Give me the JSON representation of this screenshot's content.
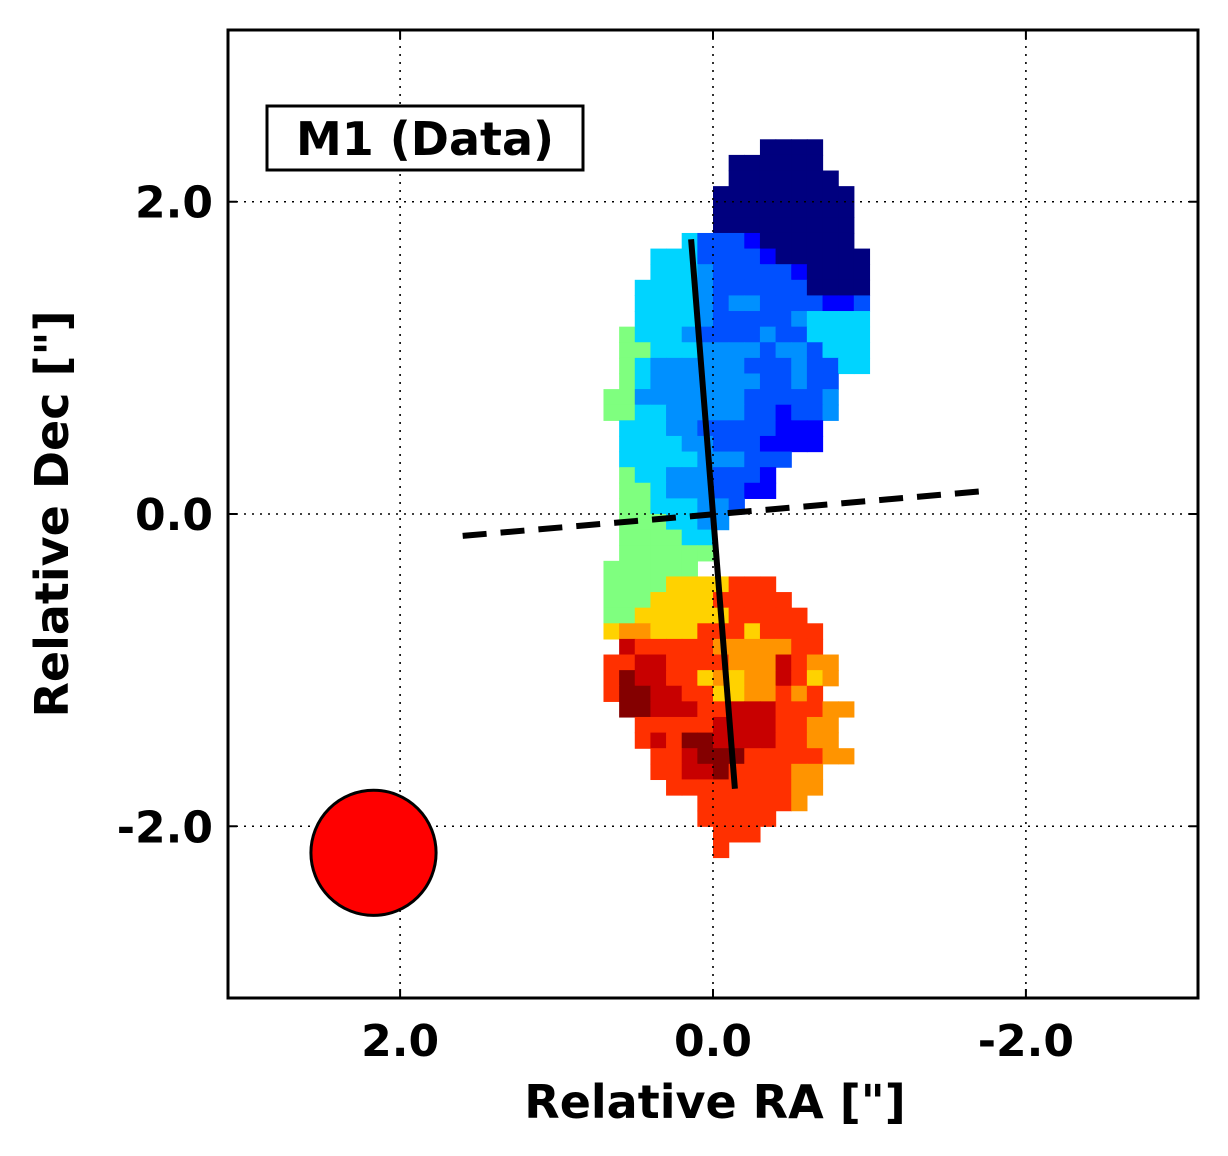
{
  "chart_data": {
    "type": "heatmap",
    "annotation": "M1 (Data)",
    "xlabel": "Relative RA [\"]",
    "ylabel": "Relative Dec [\"]",
    "xlim": [
      3.1,
      -3.1
    ],
    "ylim": [
      -3.1,
      3.1
    ],
    "grid": true,
    "xticks": [
      2.0,
      0.0,
      -2.0
    ],
    "yticks": [
      2.0,
      0.0,
      -2.0
    ],
    "xtick_labels": [
      "2.0",
      "0.0",
      "-2.0"
    ],
    "ytick_labels": [
      "2.0",
      "0.0",
      "-2.0"
    ],
    "pixel_size_arcsec": 0.1,
    "kinematic_major_axis": {
      "x": [
        0.14,
        -0.14
      ],
      "y": [
        1.76,
        -1.76
      ],
      "style": "solid"
    },
    "kinematic_minor_axis": {
      "x": [
        1.6,
        -1.77
      ],
      "y": [
        -0.14,
        0.15
      ],
      "style": "dashed"
    },
    "beam": {
      "x": 2.17,
      "y": -2.17,
      "diameter_arcsec": 0.8,
      "color": "#ff0000"
    },
    "colormap": "jet",
    "pixel_map": {
      "palette": {
        "0": "#00007f",
        "1": "#0000ff",
        "2": "#0050ff",
        "3": "#0090ff",
        "4": "#00d4ff",
        "5": "#7fff7f",
        "6": "#ffd200",
        "7": "#ff9400",
        "8": "#ff3000",
        "9": "#c80000",
        "a": "#840000"
      },
      "dec_top": 2.35,
      "rows": [
        {
          "ra_start": -0.35,
          "cells": "0000"
        },
        {
          "ra_start": -0.15,
          "cells": "000000"
        },
        {
          "ra_start": -0.15,
          "cells": "0000000"
        },
        {
          "ra_start": -0.05,
          "cells": "000000000"
        },
        {
          "ra_start": -0.05,
          "cells": "000000000"
        },
        {
          "ra_start": -0.05,
          "cells": "000000000"
        },
        {
          "ra_start": 0.15,
          "cells": "42221000000"
        },
        {
          "ra_start": 0.35,
          "cells": "44422221000000"
        },
        {
          "ra_start": 0.35,
          "cells": "44432222210000"
        },
        {
          "ra_start": 0.45,
          "cells": "444432222220000"
        },
        {
          "ra_start": 0.45,
          "cells": "444432332222112"
        },
        {
          "ra_start": 0.45,
          "cells": "444432222234444"
        },
        {
          "ra_start": 0.55,
          "cells": "5444322223224444"
        },
        {
          "ra_start": 0.55,
          "cells": "5544433332332444"
        },
        {
          "ra_start": 0.55,
          "cells": "5433333322232244"
        },
        {
          "ra_start": 0.55,
          "cells": "54333333322322"
        },
        {
          "ra_start": 0.65,
          "cells": "553333333222223"
        },
        {
          "ra_start": 0.65,
          "cells": "554433333221223"
        },
        {
          "ra_start": 0.55,
          "cells": "4443322222111"
        },
        {
          "ra_start": 0.55,
          "cells": "4444332221111"
        },
        {
          "ra_start": 0.55,
          "cells": "44444333222"
        },
        {
          "ra_start": 0.55,
          "cells": "5443332221"
        },
        {
          "ra_start": 0.55,
          "cells": "5543332211"
        },
        {
          "ra_start": 0.55,
          "cells": "55444332"
        },
        {
          "ra_start": 0.55,
          "cells": "5554433"
        },
        {
          "ra_start": 0.55,
          "cells": "555544"
        },
        {
          "ra_start": 0.55,
          "cells": "555555"
        },
        {
          "ra_start": 0.65,
          "cells": "555555"
        },
        {
          "ra_start": 0.65,
          "cells": "55556666888"
        },
        {
          "ra_start": 0.65,
          "cells": "555666688888"
        },
        {
          "ra_start": 0.65,
          "cells": "5566666688888"
        },
        {
          "ra_start": 0.65,
          "cells": "67766688868888"
        },
        {
          "ra_start": 0.55,
          "cells": "9888887777788"
        },
        {
          "ra_start": 0.65,
          "cells": "889988887779877"
        },
        {
          "ra_start": 0.65,
          "cells": "8a9988676779867"
        },
        {
          "ra_start": 0.65,
          "cells": "8aa99886677878"
        },
        {
          "ra_start": 0.55,
          "cells": "aa9998899988877"
        },
        {
          "ra_start": 0.45,
          "cells": "8888899998877"
        },
        {
          "ra_start": 0.45,
          "cells": "898aa99998877"
        },
        {
          "ra_start": 0.35,
          "cells": "889aaa8888877"
        },
        {
          "ra_start": 0.35,
          "cells": "8899a888877"
        },
        {
          "ra_start": 0.25,
          "cells": "8888888877"
        },
        {
          "ra_start": 0.05,
          "cells": "8888887"
        },
        {
          "ra_start": 0.05,
          "cells": "88888"
        },
        {
          "ra_start": -0.05,
          "cells": "888"
        },
        {
          "ra_start": -0.05,
          "cells": "8"
        }
      ]
    }
  }
}
